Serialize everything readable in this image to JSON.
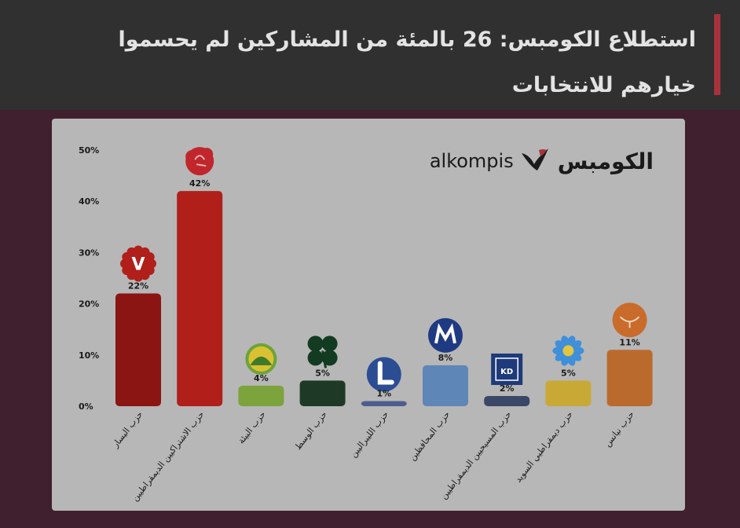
{
  "header": {
    "title": "استطلاع الكومبس: 26 بالمئة من المشاركين لم يحسموا خيارهم للانتخابات"
  },
  "brand": {
    "arabic": "الكومبس",
    "latin": "alkompis",
    "icon": "bird-logo-icon"
  },
  "chart_data": {
    "type": "bar",
    "categories": [
      "حزب اليسار",
      "حزب الاشتراكيين الديمقراطيين",
      "حزب البيئة",
      "حزب الوسط",
      "حزب الليبراليين",
      "حزب المحافظين",
      "حزب المسيحيين الديمقراطيين",
      "حزب ديمقراطيي السويد",
      "حزب نيانس"
    ],
    "values": [
      22,
      42,
      4,
      5,
      1,
      8,
      2,
      5,
      11
    ],
    "value_labels": [
      "22%",
      "42%",
      "4%",
      "5%",
      "1%",
      "8%",
      "2%",
      "5%",
      "11%"
    ],
    "colors": [
      "#8a1513",
      "#b01f1a",
      "#7da33c",
      "#1e3a26",
      "#4d5e8e",
      "#5e86b7",
      "#3b4766",
      "#c9a935",
      "#bb6a2e"
    ],
    "logo_icons": [
      "v-rose-icon",
      "rose-fist-icon",
      "sun-leaf-icon",
      "four-leaf-clover-icon",
      "letter-l-icon",
      "letter-m-icon",
      "kd-box-icon",
      "blue-flower-icon",
      "bird-circle-icon"
    ],
    "logo_texts": [
      "V",
      "",
      "",
      "",
      "",
      "",
      "KD",
      "",
      ""
    ],
    "yticks": [
      "0%",
      "10%",
      "20%",
      "30%",
      "40%",
      "50%"
    ],
    "ylim": [
      0,
      50
    ],
    "grid": false
  }
}
